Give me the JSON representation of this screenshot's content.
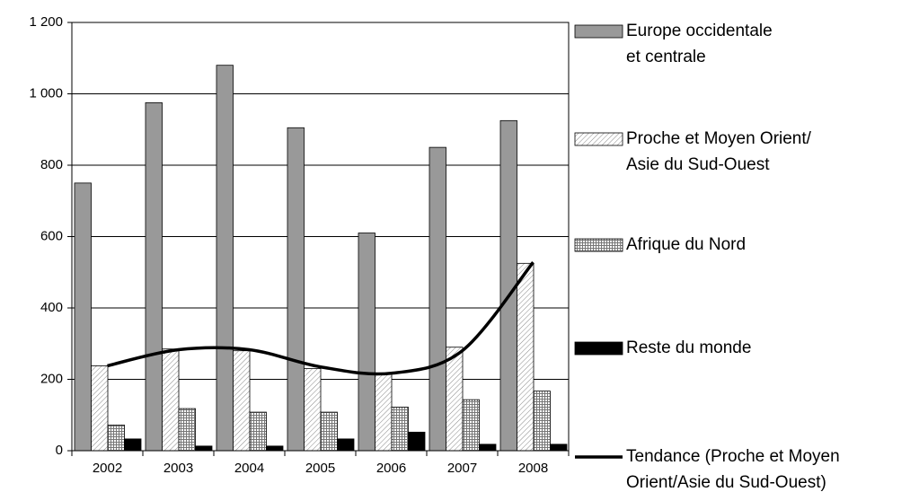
{
  "chart_data": {
    "type": "bar",
    "categories": [
      "2002",
      "2003",
      "2004",
      "2005",
      "2006",
      "2007",
      "2008"
    ],
    "series": [
      {
        "name": "Europe occidentale\net centrale",
        "color": "#999999",
        "pattern": "solid",
        "values": [
          750,
          975,
          1080,
          905,
          610,
          850,
          925
        ]
      },
      {
        "name": "Proche et Moyen Orient/\nAsie du Sud-Ouest",
        "color": "#ffffff",
        "pattern": "diagonal",
        "values": [
          238,
          285,
          280,
          230,
          215,
          290,
          525
        ]
      },
      {
        "name": "Afrique du Nord",
        "color": "#ffffff",
        "pattern": "grid",
        "values": [
          72,
          118,
          108,
          108,
          122,
          143,
          167
        ]
      },
      {
        "name": "Reste du monde",
        "color": "#000000",
        "pattern": "solid",
        "values": [
          33,
          13,
          13,
          33,
          52,
          18,
          18
        ]
      },
      {
        "name": "Tendance (Proche et Moyen\nOrient/Asie du Sud-Ouest)",
        "color": "#000000",
        "kind": "trend",
        "values": [
          238,
          283,
          283,
          235,
          217,
          280,
          528
        ]
      }
    ],
    "ylim": [
      0,
      1200
    ],
    "yticks": [
      0,
      200,
      400,
      600,
      800,
      {
        "value": 1000,
        "label": "1 000"
      },
      {
        "value": 1200,
        "label": "1 200"
      }
    ],
    "grid": true,
    "legend": "right"
  }
}
